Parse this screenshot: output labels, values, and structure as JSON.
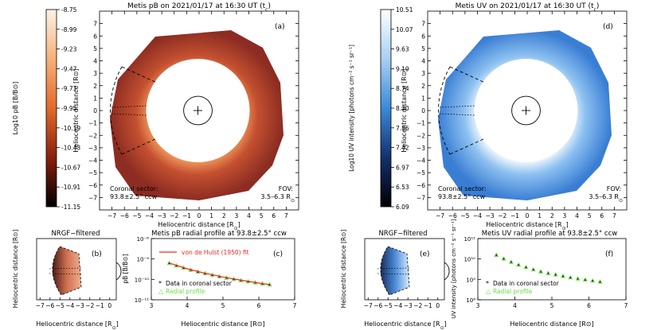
{
  "figure": {
    "panel_a": {
      "title": "Metis pB on 2021/01/17 at 16:30 UT (t",
      "title_sub": "c",
      "title_close": ")",
      "letter": "(a)",
      "sector_label_1": "Coronal sector:",
      "sector_label_2": "93.8±2.5° ccw",
      "fov_label_1": "FOV:",
      "fov_label_2": "3.5–6.3 R",
      "fov_label_sub": "⊙",
      "xlabel": "Heliocentric distance [R",
      "xlabel_sub": "⊙",
      "xlabel_close": "]",
      "ylabel": "Heliocentric distance [R⊙]",
      "xticks": [
        "−7",
        "−6",
        "−5",
        "−4",
        "−3",
        "−2",
        "−1",
        "0",
        "1",
        "2",
        "3",
        "4",
        "5",
        "6",
        "7"
      ],
      "yticks": [
        "7",
        "6",
        "5",
        "4",
        "3",
        "2",
        "1",
        "0",
        "−1",
        "−2",
        "−3",
        "−4",
        "−5",
        "−6",
        "−7"
      ],
      "colorbar_label": "Log10 pB [B/B⊙]",
      "colorbar_ticks": [
        "-8.75",
        "-8.99",
        "-9.23",
        "-9.47",
        "-9.71",
        "-9.95",
        "-10.19",
        "-10.43",
        "-10.67",
        "-10.91",
        "-11.15"
      ],
      "color_high": "#fdf3e6",
      "color_mid": "#e06a2a",
      "color_low": "#000000"
    },
    "panel_d": {
      "title": "Metis UV on 2021/01/17 at 16:30 UT (t",
      "title_sub": "c",
      "title_close": ")",
      "letter": "(d)",
      "sector_label_1": "Coronal sector:",
      "sector_label_2": "93.8±2.5° ccw",
      "fov_label_1": "FOV:",
      "fov_label_2": "3.5–6.3 R",
      "fov_label_sub": "⊙",
      "xlabel": "Heliocentric distance [R",
      "xlabel_sub": "⊙",
      "xlabel_close": "]",
      "ylabel": "Heliocentric distance [R⊙]",
      "colorbar_label": "Log10 UV intensity [photons cm⁻² s⁻¹ sr⁻¹]",
      "colorbar_ticks": [
        "10.51",
        "10.07",
        "9.63",
        "9.19",
        "8.74",
        "8.30",
        "7.86",
        "7.42",
        "6.97",
        "6.53",
        "6.09"
      ],
      "color_high": "#ffffff",
      "color_mid": "#3a8ad8",
      "color_low": "#000000"
    },
    "panel_b": {
      "title": "NRGF−filtered",
      "letter": "(b)",
      "xlabel": "Heliocentric distance [R",
      "xlabel_sub": "⊙",
      "xlabel_close": "]",
      "ylabel": "Heliocentric distance [R⊙]",
      "xticks": [
        "−7",
        "−6",
        "−5",
        "−4",
        "−3",
        "−2",
        "−1",
        "0"
      ]
    },
    "panel_e": {
      "title": "NRGF−filtered",
      "letter": "(e)",
      "xlabel": "Heliocentric distance [R",
      "xlabel_sub": "⊙",
      "xlabel_close": "]",
      "ylabel": "Heliocentric distance [R⊙]",
      "xticks": [
        "−7",
        "−6",
        "−5",
        "−4",
        "−3",
        "−2",
        "−1",
        "0"
      ]
    }
  },
  "chart_data": [
    {
      "type": "scatter",
      "panel": "(c)",
      "title": "Metis pB radial profile at 93.8±2.5° ccw",
      "xlabel": "Heliocentric distance [R⊙]",
      "ylabel": "pB [B/B⊙]",
      "xlim": [
        3,
        7
      ],
      "ylim_log": [
        -11,
        -8
      ],
      "xticks": [
        "3",
        "4",
        "5",
        "6",
        "7"
      ],
      "yticks": [
        "10⁻⁸",
        "10⁻⁹",
        "10⁻¹⁰",
        "10⁻¹¹"
      ],
      "legend": [
        "von de Hulst (1950) fit",
        "Data in coronal sector",
        "Radial profile"
      ],
      "series": [
        {
          "name": "Data in coronal sector",
          "color": "#000000",
          "x": [
            3.5,
            3.7,
            3.9,
            4.1,
            4.3,
            4.5,
            4.7,
            4.9,
            5.1,
            5.3,
            5.5,
            5.7,
            5.9,
            6.1,
            6.3
          ],
          "log_y": [
            -9.2,
            -9.32,
            -9.43,
            -9.53,
            -9.62,
            -9.7,
            -9.78,
            -9.85,
            -9.92,
            -9.98,
            -10.04,
            -10.1,
            -10.15,
            -10.2,
            -10.25
          ]
        },
        {
          "name": "Radial profile",
          "color": "#66dd44",
          "x": [
            3.5,
            3.7,
            3.9,
            4.1,
            4.3,
            4.5,
            4.7,
            4.9,
            5.1,
            5.3,
            5.5,
            5.7,
            5.9,
            6.1,
            6.3
          ],
          "log_y": [
            -9.2,
            -9.32,
            -9.43,
            -9.53,
            -9.62,
            -9.7,
            -9.78,
            -9.85,
            -9.92,
            -9.98,
            -10.04,
            -10.1,
            -10.15,
            -10.2,
            -10.25
          ]
        },
        {
          "name": "von de Hulst (1950) fit",
          "color": "#ff2020",
          "x": [
            3.5,
            4,
            4.5,
            5,
            5.5,
            6,
            6.3
          ],
          "log_y": [
            -9.2,
            -9.48,
            -9.7,
            -9.88,
            -10.04,
            -10.18,
            -10.25
          ]
        }
      ]
    },
    {
      "type": "scatter",
      "panel": "(f)",
      "title": "Metis UV radial profile at 93.8±2.5° ccw",
      "xlabel": "Heliocentric distance [R⊙]",
      "ylabel": "UV intensity [photons cm⁻² s⁻¹ sr⁻¹]",
      "xlim": [
        3,
        7
      ],
      "ylim_log": [
        8,
        11
      ],
      "xticks": [
        "3",
        "4",
        "5",
        "6",
        "7"
      ],
      "yticks": [
        "10¹¹",
        "10¹⁰",
        "10⁹",
        "10⁸"
      ],
      "legend": [
        "Data in coronal sector",
        "Radial profile"
      ],
      "series": [
        {
          "name": "Data in coronal sector",
          "color": "#000000",
          "x": [
            3.5,
            3.7,
            3.9,
            4.1,
            4.3,
            4.5,
            4.7,
            4.9,
            5.1,
            5.3,
            5.5,
            5.7,
            5.9,
            6.1,
            6.3
          ],
          "log_y": [
            10.2,
            10.02,
            9.86,
            9.72,
            9.6,
            9.49,
            9.39,
            9.31,
            9.24,
            9.17,
            9.1,
            9.04,
            8.99,
            8.94,
            8.89
          ]
        },
        {
          "name": "Radial profile",
          "color": "#66dd44",
          "x": [
            3.5,
            3.7,
            3.9,
            4.1,
            4.3,
            4.5,
            4.7,
            4.9,
            5.1,
            5.3,
            5.5,
            5.7,
            5.9,
            6.1,
            6.3
          ],
          "log_y": [
            10.2,
            10.02,
            9.86,
            9.72,
            9.6,
            9.49,
            9.39,
            9.31,
            9.24,
            9.17,
            9.1,
            9.04,
            8.99,
            8.94,
            8.89
          ]
        }
      ]
    }
  ]
}
